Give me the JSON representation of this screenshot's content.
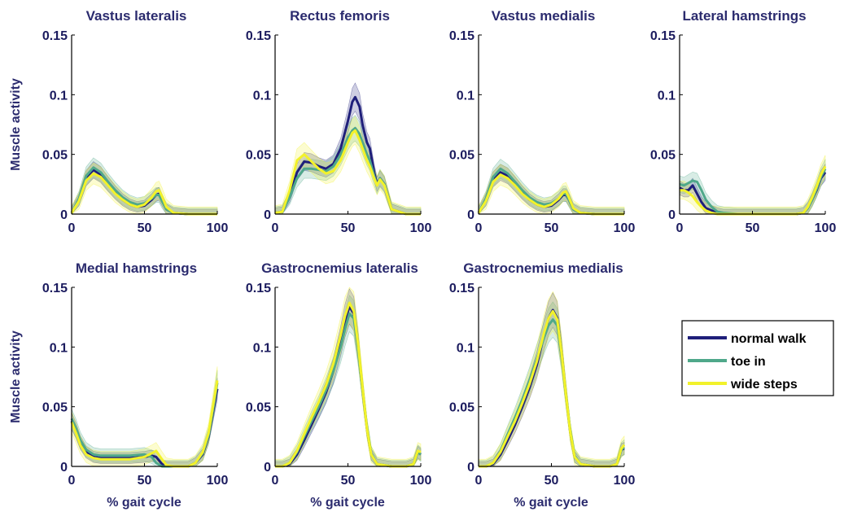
{
  "figure": {
    "ylabel": "Muscle activity",
    "xlabel": "% gait cycle"
  },
  "legend": {
    "position": "right of bottom row",
    "entries": [
      {
        "label": "normal walk",
        "color": "#1f1f7a"
      },
      {
        "label": "toe in",
        "color": "#4fa88a"
      },
      {
        "label": "wide steps",
        "color": "#f2f22a"
      }
    ]
  },
  "chart_data": [
    {
      "type": "line",
      "title": "Vastus lateralis",
      "xlim": [
        0,
        100
      ],
      "ylim": [
        0,
        0.15
      ],
      "xticks": [
        "0",
        "50",
        "100"
      ],
      "yticks": [
        "0",
        "0.05",
        "0.1",
        "0.15"
      ],
      "x": [
        0,
        5,
        10,
        15,
        20,
        25,
        30,
        35,
        40,
        45,
        50,
        55,
        58,
        60,
        62,
        65,
        70,
        80,
        90,
        100
      ],
      "series": [
        {
          "name": "normal walk",
          "color": "#1f1f7a",
          "values": [
            0.001,
            0.012,
            0.03,
            0.037,
            0.033,
            0.025,
            0.018,
            0.012,
            0.008,
            0.006,
            0.007,
            0.012,
            0.016,
            0.017,
            0.012,
            0.004,
            0.001,
            0.0,
            0.0,
            0.0
          ]
        },
        {
          "name": "toe in",
          "color": "#4fa88a",
          "values": [
            0.001,
            0.013,
            0.032,
            0.039,
            0.035,
            0.027,
            0.02,
            0.014,
            0.01,
            0.008,
            0.009,
            0.013,
            0.016,
            0.016,
            0.011,
            0.004,
            0.001,
            0.0,
            0.0,
            0.0
          ]
        },
        {
          "name": "wide steps",
          "color": "#f2f22a",
          "values": [
            0.001,
            0.011,
            0.028,
            0.034,
            0.031,
            0.024,
            0.017,
            0.012,
            0.008,
            0.006,
            0.008,
            0.014,
            0.019,
            0.02,
            0.015,
            0.006,
            0.001,
            0.0,
            0.0,
            0.0
          ]
        }
      ]
    },
    {
      "type": "line",
      "title": "Rectus femoris",
      "xlim": [
        0,
        100
      ],
      "ylim": [
        0,
        0.15
      ],
      "xticks": [
        "0",
        "50",
        "100"
      ],
      "yticks": [
        "0",
        "0.05",
        "0.1",
        "0.15"
      ],
      "x": [
        0,
        5,
        10,
        15,
        20,
        25,
        30,
        35,
        40,
        45,
        50,
        53,
        55,
        58,
        60,
        63,
        65,
        68,
        70,
        72,
        75,
        80,
        90,
        100
      ],
      "series": [
        {
          "name": "normal walk",
          "color": "#1f1f7a",
          "values": [
            0.001,
            0.002,
            0.015,
            0.035,
            0.044,
            0.043,
            0.04,
            0.038,
            0.042,
            0.055,
            0.078,
            0.094,
            0.098,
            0.09,
            0.075,
            0.06,
            0.055,
            0.035,
            0.025,
            0.03,
            0.025,
            0.004,
            0.0,
            0.0
          ]
        },
        {
          "name": "toe in",
          "color": "#4fa88a",
          "values": [
            0.001,
            0.002,
            0.014,
            0.03,
            0.038,
            0.038,
            0.037,
            0.036,
            0.04,
            0.05,
            0.064,
            0.07,
            0.072,
            0.067,
            0.06,
            0.05,
            0.045,
            0.032,
            0.024,
            0.03,
            0.025,
            0.004,
            0.0,
            0.0
          ]
        },
        {
          "name": "wide steps",
          "color": "#f2f22a",
          "values": [
            0.001,
            0.002,
            0.02,
            0.045,
            0.05,
            0.044,
            0.038,
            0.034,
            0.036,
            0.045,
            0.06,
            0.068,
            0.07,
            0.062,
            0.055,
            0.045,
            0.04,
            0.03,
            0.024,
            0.029,
            0.024,
            0.004,
            0.0,
            0.0
          ]
        }
      ]
    },
    {
      "type": "line",
      "title": "Vastus medialis",
      "xlim": [
        0,
        100
      ],
      "ylim": [
        0,
        0.15
      ],
      "xticks": [
        "0",
        "50",
        "100"
      ],
      "yticks": [
        "0",
        "0.05",
        "0.1",
        "0.15"
      ],
      "x": [
        0,
        5,
        10,
        15,
        20,
        25,
        30,
        35,
        40,
        45,
        50,
        55,
        58,
        60,
        62,
        65,
        70,
        80,
        90,
        100
      ],
      "series": [
        {
          "name": "normal walk",
          "color": "#1f1f7a",
          "values": [
            0.001,
            0.012,
            0.029,
            0.035,
            0.032,
            0.025,
            0.018,
            0.012,
            0.008,
            0.006,
            0.007,
            0.012,
            0.016,
            0.016,
            0.012,
            0.004,
            0.001,
            0.0,
            0.0,
            0.0
          ]
        },
        {
          "name": "toe in",
          "color": "#4fa88a",
          "values": [
            0.001,
            0.013,
            0.031,
            0.038,
            0.034,
            0.027,
            0.02,
            0.014,
            0.01,
            0.008,
            0.009,
            0.013,
            0.017,
            0.017,
            0.012,
            0.004,
            0.001,
            0.0,
            0.0,
            0.0
          ]
        },
        {
          "name": "wide steps",
          "color": "#f2f22a",
          "values": [
            0.001,
            0.011,
            0.027,
            0.033,
            0.03,
            0.024,
            0.017,
            0.012,
            0.008,
            0.006,
            0.008,
            0.013,
            0.018,
            0.019,
            0.014,
            0.005,
            0.001,
            0.0,
            0.0,
            0.0
          ]
        }
      ]
    },
    {
      "type": "line",
      "title": "Lateral hamstrings",
      "xlim": [
        0,
        100
      ],
      "ylim": [
        0,
        0.15
      ],
      "xticks": [
        "0",
        "50",
        "100"
      ],
      "yticks": [
        "0",
        "0.05",
        "0.1",
        "0.15"
      ],
      "x": [
        0,
        3,
        6,
        9,
        12,
        15,
        18,
        22,
        26,
        30,
        40,
        50,
        60,
        70,
        80,
        85,
        88,
        91,
        94,
        97,
        100
      ],
      "series": [
        {
          "name": "normal walk",
          "color": "#1f1f7a",
          "values": [
            0.022,
            0.02,
            0.02,
            0.024,
            0.017,
            0.01,
            0.005,
            0.003,
            0.001,
            0.0,
            0.0,
            0.0,
            0.0,
            0.0,
            0.0,
            0.001,
            0.005,
            0.012,
            0.02,
            0.03,
            0.035
          ]
        },
        {
          "name": "toe in",
          "color": "#4fa88a",
          "values": [
            0.025,
            0.024,
            0.026,
            0.028,
            0.027,
            0.02,
            0.012,
            0.006,
            0.002,
            0.001,
            0.0,
            0.0,
            0.0,
            0.0,
            0.0,
            0.001,
            0.005,
            0.012,
            0.021,
            0.031,
            0.038
          ]
        },
        {
          "name": "wide steps",
          "color": "#f2f22a",
          "values": [
            0.02,
            0.02,
            0.018,
            0.015,
            0.01,
            0.006,
            0.003,
            0.001,
            0.0,
            0.0,
            0.0,
            0.0,
            0.0,
            0.0,
            0.0,
            0.001,
            0.006,
            0.014,
            0.023,
            0.033,
            0.04
          ]
        }
      ]
    },
    {
      "type": "line",
      "title": "Medial hamstrings",
      "xlim": [
        0,
        100
      ],
      "ylim": [
        0,
        0.15
      ],
      "xticks": [
        "0",
        "50",
        "100"
      ],
      "yticks": [
        "0",
        "0.05",
        "0.1",
        "0.15"
      ],
      "x": [
        0,
        3,
        6,
        10,
        15,
        20,
        25,
        30,
        40,
        50,
        55,
        58,
        62,
        65,
        70,
        80,
        85,
        90,
        94,
        97,
        100
      ],
      "series": [
        {
          "name": "normal walk",
          "color": "#1f1f7a",
          "values": [
            0.038,
            0.03,
            0.02,
            0.012,
            0.008,
            0.007,
            0.007,
            0.007,
            0.007,
            0.008,
            0.009,
            0.008,
            0.002,
            0.0,
            0.0,
            0.0,
            0.003,
            0.01,
            0.025,
            0.045,
            0.065
          ]
        },
        {
          "name": "toe in",
          "color": "#4fa88a",
          "values": [
            0.04,
            0.032,
            0.022,
            0.014,
            0.01,
            0.009,
            0.009,
            0.009,
            0.009,
            0.01,
            0.008,
            0.003,
            0.0,
            0.0,
            0.0,
            0.0,
            0.003,
            0.011,
            0.026,
            0.047,
            0.07
          ]
        },
        {
          "name": "wide steps",
          "color": "#f2f22a",
          "values": [
            0.037,
            0.028,
            0.018,
            0.01,
            0.007,
            0.006,
            0.006,
            0.006,
            0.006,
            0.008,
            0.011,
            0.013,
            0.006,
            0.001,
            0.0,
            0.0,
            0.003,
            0.012,
            0.028,
            0.05,
            0.072
          ]
        }
      ]
    },
    {
      "type": "line",
      "title": "Gastrocnemius lateralis",
      "xlim": [
        0,
        100
      ],
      "ylim": [
        0,
        0.15
      ],
      "xticks": [
        "0",
        "50",
        "100"
      ],
      "yticks": [
        "0",
        "0.05",
        "0.1",
        "0.15"
      ],
      "x": [
        0,
        5,
        10,
        15,
        20,
        25,
        30,
        35,
        40,
        45,
        48,
        51,
        54,
        57,
        60,
        63,
        66,
        70,
        80,
        90,
        95,
        98,
        100
      ],
      "series": [
        {
          "name": "normal walk",
          "color": "#1f1f7a",
          "values": [
            0.0,
            0.0,
            0.002,
            0.01,
            0.022,
            0.035,
            0.048,
            0.062,
            0.08,
            0.105,
            0.122,
            0.134,
            0.128,
            0.1,
            0.065,
            0.032,
            0.01,
            0.002,
            0.0,
            0.0,
            0.002,
            0.012,
            0.01
          ]
        },
        {
          "name": "toe in",
          "color": "#4fa88a",
          "values": [
            0.0,
            0.0,
            0.003,
            0.012,
            0.025,
            0.038,
            0.05,
            0.064,
            0.08,
            0.1,
            0.115,
            0.128,
            0.124,
            0.098,
            0.065,
            0.033,
            0.011,
            0.002,
            0.0,
            0.0,
            0.002,
            0.012,
            0.01
          ]
        },
        {
          "name": "wide steps",
          "color": "#f2f22a",
          "values": [
            0.0,
            0.0,
            0.003,
            0.013,
            0.027,
            0.041,
            0.054,
            0.068,
            0.086,
            0.11,
            0.126,
            0.137,
            0.13,
            0.102,
            0.066,
            0.032,
            0.01,
            0.002,
            0.0,
            0.0,
            0.002,
            0.013,
            0.012
          ]
        }
      ]
    },
    {
      "type": "line",
      "title": "Gastrocnemius medialis",
      "xlim": [
        0,
        100
      ],
      "ylim": [
        0,
        0.15
      ],
      "xticks": [
        "0",
        "50",
        "100"
      ],
      "yticks": [
        "0",
        "0.05",
        "0.1",
        "0.15"
      ],
      "x": [
        0,
        5,
        10,
        15,
        20,
        25,
        30,
        35,
        40,
        45,
        48,
        51,
        54,
        57,
        60,
        63,
        66,
        70,
        80,
        90,
        95,
        98,
        100
      ],
      "series": [
        {
          "name": "normal walk",
          "color": "#1f1f7a",
          "values": [
            0.0,
            0.0,
            0.002,
            0.01,
            0.022,
            0.035,
            0.05,
            0.066,
            0.085,
            0.11,
            0.124,
            0.131,
            0.124,
            0.095,
            0.06,
            0.028,
            0.008,
            0.002,
            0.0,
            0.0,
            0.002,
            0.014,
            0.015
          ]
        },
        {
          "name": "toe in",
          "color": "#4fa88a",
          "values": [
            0.0,
            0.0,
            0.003,
            0.013,
            0.027,
            0.041,
            0.056,
            0.072,
            0.09,
            0.108,
            0.118,
            0.123,
            0.118,
            0.093,
            0.06,
            0.029,
            0.009,
            0.002,
            0.0,
            0.0,
            0.002,
            0.014,
            0.016
          ]
        },
        {
          "name": "wide steps",
          "color": "#f2f22a",
          "values": [
            0.0,
            0.0,
            0.003,
            0.012,
            0.025,
            0.038,
            0.053,
            0.069,
            0.088,
            0.112,
            0.124,
            0.13,
            0.123,
            0.095,
            0.06,
            0.028,
            0.008,
            0.002,
            0.0,
            0.0,
            0.002,
            0.015,
            0.018
          ]
        }
      ]
    }
  ]
}
